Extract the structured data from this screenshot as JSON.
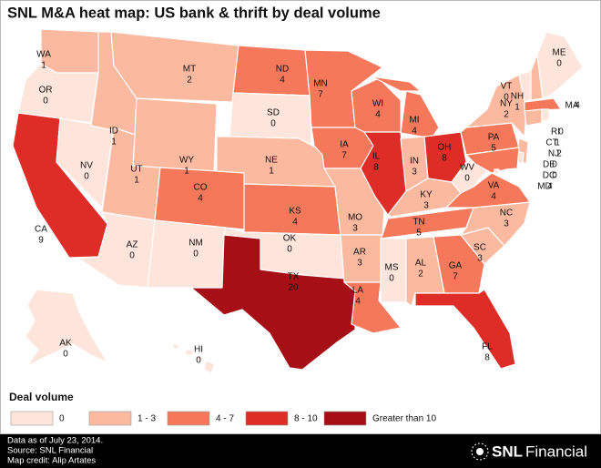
{
  "header": {
    "title": "SNL M&A heat map: US bank & thrift by deal volume"
  },
  "states": [
    {
      "abbr": "WA",
      "value": 1,
      "color": "#fbbaa0"
    },
    {
      "abbr": "OR",
      "value": 0,
      "color": "#fde5dc"
    },
    {
      "abbr": "CA",
      "value": 9,
      "color": "#de2d26"
    },
    {
      "abbr": "NV",
      "value": 0,
      "color": "#fde5dc"
    },
    {
      "abbr": "ID",
      "value": 1,
      "color": "#fbbaa0"
    },
    {
      "abbr": "MT",
      "value": 2,
      "color": "#fbbaa0"
    },
    {
      "abbr": "WY",
      "value": 1,
      "color": "#fbbaa0"
    },
    {
      "abbr": "UT",
      "value": 1,
      "color": "#fbbaa0"
    },
    {
      "abbr": "AZ",
      "value": 0,
      "color": "#fde5dc"
    },
    {
      "abbr": "CO",
      "value": 4,
      "color": "#f5785a"
    },
    {
      "abbr": "NM",
      "value": 0,
      "color": "#fde5dc"
    },
    {
      "abbr": "ND",
      "value": 4,
      "color": "#f5785a"
    },
    {
      "abbr": "SD",
      "value": 0,
      "color": "#fde5dc"
    },
    {
      "abbr": "NE",
      "value": 1,
      "color": "#fbbaa0"
    },
    {
      "abbr": "KS",
      "value": 4,
      "color": "#f5785a"
    },
    {
      "abbr": "OK",
      "value": 0,
      "color": "#fde5dc"
    },
    {
      "abbr": "TX",
      "value": 20,
      "color": "#a50f15"
    },
    {
      "abbr": "MN",
      "value": 7,
      "color": "#f5785a"
    },
    {
      "abbr": "IA",
      "value": 7,
      "color": "#f5785a"
    },
    {
      "abbr": "MO",
      "value": 3,
      "color": "#fbbaa0"
    },
    {
      "abbr": "AR",
      "value": 3,
      "color": "#fbbaa0"
    },
    {
      "abbr": "LA",
      "value": 4,
      "color": "#f5785a"
    },
    {
      "abbr": "WI",
      "value": 4,
      "color": "#f5785a"
    },
    {
      "abbr": "IL",
      "value": 8,
      "color": "#de2d26"
    },
    {
      "abbr": "MI",
      "value": 4,
      "color": "#f5785a"
    },
    {
      "abbr": "IN",
      "value": 3,
      "color": "#fbbaa0"
    },
    {
      "abbr": "OH",
      "value": 8,
      "color": "#de2d26"
    },
    {
      "abbr": "KY",
      "value": 3,
      "color": "#fbbaa0"
    },
    {
      "abbr": "TN",
      "value": 5,
      "color": "#f5785a"
    },
    {
      "abbr": "MS",
      "value": 0,
      "color": "#fde5dc"
    },
    {
      "abbr": "AL",
      "value": 2,
      "color": "#fbbaa0"
    },
    {
      "abbr": "GA",
      "value": 7,
      "color": "#f5785a"
    },
    {
      "abbr": "FL",
      "value": 8,
      "color": "#de2d26"
    },
    {
      "abbr": "SC",
      "value": 3,
      "color": "#fbbaa0"
    },
    {
      "abbr": "NC",
      "value": 3,
      "color": "#fbbaa0"
    },
    {
      "abbr": "VA",
      "value": 4,
      "color": "#f5785a"
    },
    {
      "abbr": "WV",
      "value": 0,
      "color": "#fde5dc"
    },
    {
      "abbr": "PA",
      "value": 5,
      "color": "#f5785a"
    },
    {
      "abbr": "NY",
      "value": 2,
      "color": "#fbbaa0"
    },
    {
      "abbr": "NJ",
      "value": 2,
      "color": "#fbbaa0"
    },
    {
      "abbr": "DE",
      "value": 0,
      "color": "#fde5dc"
    },
    {
      "abbr": "MD",
      "value": 4,
      "color": "#f5785a"
    },
    {
      "abbr": "DC",
      "value": 0,
      "color": "#fde5dc"
    },
    {
      "abbr": "VT",
      "value": 0,
      "color": "#fde5dc"
    },
    {
      "abbr": "NH",
      "value": 1,
      "color": "#fbbaa0"
    },
    {
      "abbr": "ME",
      "value": 0,
      "color": "#fde5dc"
    },
    {
      "abbr": "MA",
      "value": 4,
      "color": "#f5785a"
    },
    {
      "abbr": "CT",
      "value": 1,
      "color": "#fbbaa0"
    },
    {
      "abbr": "RI",
      "value": 0,
      "color": "#fde5dc"
    },
    {
      "abbr": "AK",
      "value": 0,
      "color": "#fde5dc"
    },
    {
      "abbr": "HI",
      "value": 0,
      "color": "#fde5dc"
    }
  ],
  "legend": {
    "title": "Deal volume",
    "items": [
      {
        "label": "0",
        "color": "#fde5dc"
      },
      {
        "label": "1 - 3",
        "color": "#fbbaa0"
      },
      {
        "label": "4 - 7",
        "color": "#f5785a"
      },
      {
        "label": "8 - 10",
        "color": "#de2d26"
      },
      {
        "label": "Greater than 10",
        "color": "#a50f15"
      }
    ]
  },
  "footer": {
    "notes": [
      "Data as of July 23, 2014.",
      "Source: SNL Financial",
      "Map credit: Alip Artates"
    ],
    "logo": {
      "brand": "SNL",
      "name": "Financial"
    }
  }
}
